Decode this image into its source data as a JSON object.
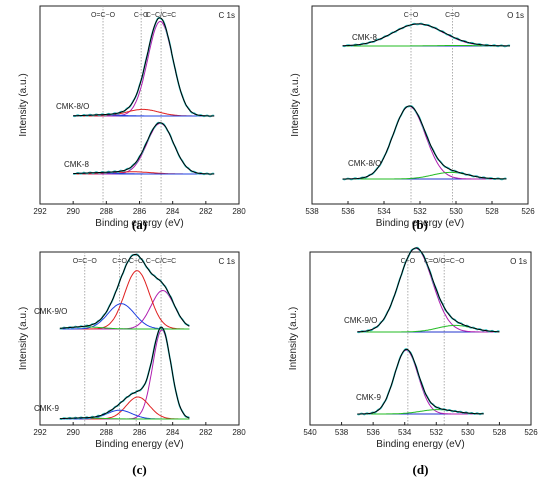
{
  "chart_data": [
    {
      "type": "line",
      "panel_label": "(a)",
      "corner_label": "C 1s",
      "xlabel": "Binding energy (eV)",
      "ylabel": "Intensity (a.u.)",
      "xlim": [
        292,
        280
      ],
      "xticks": [
        292,
        290,
        288,
        286,
        284,
        282,
        280
      ],
      "x_reversed": true,
      "reference_lines": [
        {
          "label": "O=C−O",
          "x": 288.2
        },
        {
          "label": "C−O",
          "x": 285.9
        },
        {
          "label": "C−C/C=C",
          "x": 284.7
        }
      ],
      "samples": [
        {
          "name": "CMK-8/O",
          "x_range": [
            290,
            281.5
          ],
          "peaks": [
            {
              "component": "C−C/C=C",
              "center": 284.75,
              "width": 0.75,
              "height": 0.86
            },
            {
              "component": "C−O",
              "center": 285.8,
              "width": 0.95,
              "height": 0.06
            },
            {
              "component": "O=C−O",
              "center": 288.2,
              "width": 1.0,
              "height": 0.01
            }
          ]
        },
        {
          "name": "CMK-8",
          "x_range": [
            290,
            281.5
          ],
          "peaks": [
            {
              "component": "C−C/C=C",
              "center": 284.75,
              "width": 0.8,
              "height": 0.46
            },
            {
              "component": "C−O",
              "center": 286.4,
              "width": 1.1,
              "height": 0.02
            },
            {
              "component": "O=C−O",
              "center": 288.5,
              "width": 1.1,
              "height": 0.01
            }
          ]
        }
      ]
    },
    {
      "type": "line",
      "panel_label": "(b)",
      "corner_label": "O 1s",
      "xlabel": "Binding energy (eV)",
      "ylabel": "Intensity (a.u.)",
      "xlim": [
        538,
        526
      ],
      "xticks": [
        538,
        536,
        534,
        532,
        530,
        528,
        526
      ],
      "x_reversed": true,
      "reference_lines": [
        {
          "label": "C−O",
          "x": 532.5
        },
        {
          "label": "C=O",
          "x": 530.2
        }
      ],
      "samples": [
        {
          "name": "CMK-8",
          "x_range": [
            536.3,
            527
          ],
          "peaks": [
            {
              "component": "C−O",
              "center": 532.1,
              "width": 1.4,
              "height": 0.2
            },
            {
              "component": "C=O",
              "center": 529.9,
              "width": 1.2,
              "height": 0.005
            }
          ]
        },
        {
          "name": "CMK-8/O",
          "x_range": [
            536.3,
            527.2
          ],
          "peaks": [
            {
              "component": "C−O",
              "center": 532.6,
              "width": 0.9,
              "height": 0.66
            },
            {
              "component": "C=O",
              "center": 530.3,
              "width": 1.0,
              "height": 0.06
            }
          ]
        }
      ]
    },
    {
      "type": "line",
      "panel_label": "(c)",
      "corner_label": "C 1s",
      "xlabel": "Binding energy (eV)",
      "ylabel": "Intensity (a.u.)",
      "xlim": [
        292,
        280
      ],
      "xticks": [
        292,
        290,
        288,
        286,
        284,
        282,
        280
      ],
      "x_reversed": true,
      "reference_lines": [
        {
          "label": "O=C−O",
          "x": 289.3
        },
        {
          "label": "C=O",
          "x": 287.2
        },
        {
          "label": "C−O",
          "x": 286.2
        },
        {
          "label": "C−C/C=C",
          "x": 284.7
        }
      ],
      "samples": [
        {
          "name": "CMK-9/O",
          "x_range": [
            290.8,
            283
          ],
          "peaks": [
            {
              "component": "C−C/C=C",
              "center": 284.6,
              "width": 0.7,
              "height": 0.35
            },
            {
              "component": "C−O",
              "center": 286.15,
              "width": 0.75,
              "height": 0.53
            },
            {
              "component": "C=O",
              "center": 287.1,
              "width": 0.8,
              "height": 0.23
            },
            {
              "component": "O=C−O",
              "center": 289.3,
              "width": 1.0,
              "height": 0.02
            }
          ]
        },
        {
          "name": "CMK-9",
          "x_range": [
            290.8,
            283
          ],
          "peaks": [
            {
              "component": "C−C/C=C",
              "center": 284.65,
              "width": 0.55,
              "height": 0.81
            },
            {
              "component": "C−O",
              "center": 286.1,
              "width": 0.7,
              "height": 0.2
            },
            {
              "component": "C=O",
              "center": 287.2,
              "width": 0.75,
              "height": 0.08
            },
            {
              "component": "O=C−O",
              "center": 289.3,
              "width": 1.0,
              "height": 0.01
            }
          ]
        }
      ]
    },
    {
      "type": "line",
      "panel_label": "(d)",
      "corner_label": "O 1s",
      "xlabel": "Binding energy (eV)",
      "ylabel": "Intensity (a.u.)",
      "xlim": [
        540,
        526
      ],
      "xticks": [
        540,
        538,
        536,
        534,
        532,
        530,
        528,
        526
      ],
      "x_reversed": true,
      "reference_lines": [
        {
          "label": "C−O",
          "x": 533.8
        },
        {
          "label": "C=O/O=C−O",
          "x": 531.5
        }
      ],
      "samples": [
        {
          "name": "CMK-9/O",
          "x_range": [
            537,
            528
          ],
          "peaks": [
            {
              "component": "C−O",
              "center": 533.3,
              "width": 1.05,
              "height": 0.76
            },
            {
              "component": "C=O/O=C−O",
              "center": 530.8,
              "width": 1.1,
              "height": 0.06
            }
          ]
        },
        {
          "name": "CMK-9",
          "x_range": [
            537,
            529
          ],
          "peaks": [
            {
              "component": "C−O",
              "center": 533.9,
              "width": 0.75,
              "height": 0.58
            },
            {
              "component": "C=O/O=C−O",
              "center": 531.9,
              "width": 1.1,
              "height": 0.04
            }
          ]
        }
      ]
    }
  ],
  "colors": {
    "envelope": "#000000",
    "raw": "#2ec4c4",
    "background": "#2233cc",
    "component_main": "#b01fb0",
    "component_red": "#e02020",
    "component_blue": "#2040e0",
    "component_green": "#22bb22",
    "reference_line": "#999999"
  }
}
